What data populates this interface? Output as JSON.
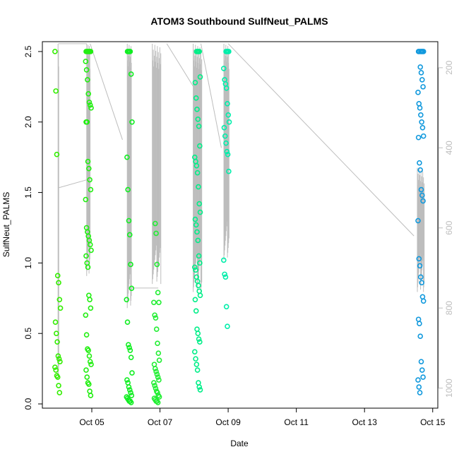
{
  "chart_data": {
    "type": "scatter",
    "title": "ATOM3 Southbound SulfNeut_PALMS",
    "xlabel": "Date",
    "ylabel": "SulfNeut_PALMS",
    "xlim": [
      3.55,
      15.15
    ],
    "ylim": [
      -0.03,
      2.57
    ],
    "x_ticks": [
      {
        "value": 5,
        "label": "Oct 05"
      },
      {
        "value": 7,
        "label": "Oct 07"
      },
      {
        "value": 9,
        "label": "Oct 09"
      },
      {
        "value": 11,
        "label": "Oct 11"
      },
      {
        "value": 13,
        "label": "Oct 13"
      },
      {
        "value": 15,
        "label": "Oct 15"
      }
    ],
    "y_ticks": [
      0.0,
      0.5,
      1.0,
      1.5,
      2.0,
      2.5
    ],
    "y_tick_labels": [
      "0.0",
      "0.5",
      "1.0",
      "1.5",
      "2.0",
      "2.5"
    ],
    "secondary_axis": {
      "side": "right",
      "range": [
        1050,
        135
      ],
      "ticks": [
        200,
        400,
        600,
        800,
        1000
      ],
      "tick_labels": [
        "200",
        "400",
        "600",
        "800",
        "1000"
      ],
      "color": "#bdbdbd"
    },
    "grid": false,
    "legend": "none",
    "colors": {
      "oct4": "#33ee00",
      "oct5": "#22ee11",
      "oct6": "#11ee22",
      "oct7": "#22ee33",
      "oct8": "#00ee88",
      "oct9": "#00eeaa",
      "oct14": "#1199dd",
      "trace": "#bdbdbd"
    },
    "series": [
      {
        "color_key": "oct4",
        "x": 4.0,
        "y": [
          2.5,
          2.22,
          1.77,
          0.91,
          0.86,
          0.74,
          0.68,
          0.58,
          0.5,
          0.44,
          0.34,
          0.32,
          0.3,
          0.26,
          0.24,
          0.2,
          0.19,
          0.13,
          0.08
        ]
      },
      {
        "color_key": "oct5",
        "x": 4.9,
        "y": [
          2.5,
          2.5,
          2.5,
          2.5,
          2.5,
          2.5,
          2.43,
          2.37,
          2.3,
          2.2,
          2.14,
          2.12,
          2.1,
          2.0,
          2.0,
          1.72,
          1.67,
          1.59,
          1.52,
          1.45,
          1.25,
          1.22,
          1.19,
          1.16,
          1.13,
          1.09,
          1.05,
          1.0,
          0.97,
          0.77,
          0.74,
          0.68,
          0.63,
          0.49,
          0.39,
          0.38,
          0.34,
          0.3,
          0.28,
          0.24,
          0.19,
          0.15,
          0.14,
          0.09,
          0.06
        ]
      },
      {
        "color_key": "oct6",
        "x": 6.1,
        "y": [
          2.5,
          2.5,
          2.5,
          2.5,
          2.34,
          2.0,
          1.75,
          1.52,
          1.3,
          1.2,
          0.99,
          0.82,
          0.74,
          0.58,
          0.42,
          0.4,
          0.38,
          0.33,
          0.22,
          0.17,
          0.15,
          0.12,
          0.1,
          0.08,
          0.06,
          0.05,
          0.04,
          0.03,
          0.02,
          0.02,
          0.01
        ]
      },
      {
        "color_key": "oct7",
        "x": 6.9,
        "y": [
          1.28,
          1.21,
          0.99,
          0.79,
          0.72,
          0.72,
          0.63,
          0.61,
          0.53,
          0.43,
          0.36,
          0.31,
          0.28,
          0.25,
          0.23,
          0.21,
          0.19,
          0.17,
          0.15,
          0.13,
          0.11,
          0.09,
          0.08,
          0.06,
          0.05,
          0.04,
          0.03,
          0.02,
          0.02,
          0.01
        ]
      },
      {
        "color_key": "oct8",
        "x": 8.1,
        "y": [
          2.5,
          2.5,
          2.5,
          2.5,
          2.32,
          2.28,
          2.17,
          2.09,
          2.02,
          1.97,
          1.83,
          1.75,
          1.72,
          1.69,
          1.64,
          1.54,
          1.42,
          1.36,
          1.31,
          1.27,
          1.22,
          1.16,
          1.05,
          1.0,
          0.97,
          0.95,
          0.9,
          0.87,
          0.84,
          0.8,
          0.77,
          0.74,
          0.66,
          0.53,
          0.5,
          0.46,
          0.44,
          0.37,
          0.32,
          0.28,
          0.24,
          0.15,
          0.12,
          0.1
        ]
      },
      {
        "color_key": "oct9",
        "x": 8.95,
        "y": [
          2.5,
          2.5,
          2.5,
          2.5,
          2.38,
          2.3,
          2.27,
          2.24,
          2.13,
          2.05,
          2.0,
          1.96,
          1.9,
          1.85,
          1.79,
          1.77,
          1.65,
          1.02,
          0.92,
          0.9,
          0.69,
          0.55
        ]
      },
      {
        "color_key": "oct14",
        "x": 14.65,
        "y": [
          2.5,
          2.5,
          2.5,
          2.5,
          2.5,
          2.5,
          2.39,
          2.35,
          2.3,
          2.25,
          2.21,
          2.13,
          2.1,
          2.05,
          2.0,
          1.96,
          1.9,
          1.89,
          1.71,
          1.66,
          1.52,
          1.48,
          1.44,
          1.3,
          1.03,
          0.98,
          0.9,
          0.86,
          0.76,
          0.73,
          0.6,
          0.57,
          0.48,
          0.3,
          0.24,
          0.19,
          0.17,
          0.12,
          0.08
        ]
      }
    ]
  }
}
